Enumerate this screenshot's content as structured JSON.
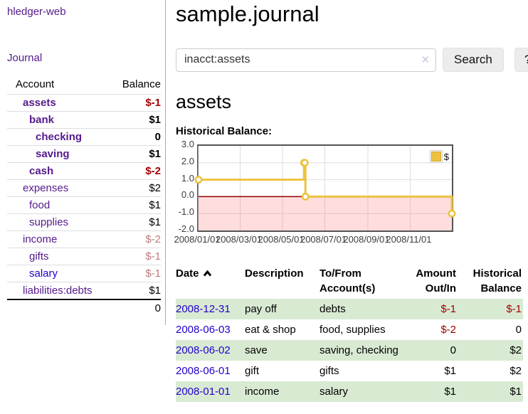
{
  "sidebar": {
    "app_title": "hledger-web",
    "journal_label": "Journal",
    "accounts_table": {
      "headers": {
        "account": "Account",
        "balance": "Balance"
      },
      "rows": [
        {
          "name": "assets",
          "balance": "$-1"
        },
        {
          "name": "bank",
          "balance": "$1"
        },
        {
          "name": "checking",
          "balance": "0"
        },
        {
          "name": "saving",
          "balance": "$1"
        },
        {
          "name": "cash",
          "balance": "$-2"
        },
        {
          "name": "expenses",
          "balance": "$2"
        },
        {
          "name": "food",
          "balance": "$1"
        },
        {
          "name": "supplies",
          "balance": "$1"
        },
        {
          "name": "income",
          "balance": "$-2"
        },
        {
          "name": "gifts",
          "balance": "$-1"
        },
        {
          "name": "salary",
          "balance": "$-1"
        },
        {
          "name": "liabilities:debts",
          "balance": "$1"
        }
      ],
      "total": "0"
    }
  },
  "main": {
    "title": "sample.journal",
    "search": {
      "value": "inacct:assets",
      "clear_icon": "✕",
      "button_label": "Search",
      "help_label": "?"
    },
    "account_heading": "assets",
    "chart_label": "Historical Balance:"
  },
  "chart_data": {
    "type": "line",
    "style": "steps",
    "title": "Historical Balance",
    "xrange": [
      "2008-01-01",
      "2008-12-31"
    ],
    "ylim": [
      -2,
      3
    ],
    "yticks": [
      "3.0",
      "2.0",
      "1.0",
      "0.0",
      "-1.0",
      "-2.0"
    ],
    "ytick_values": [
      3,
      2,
      1,
      0,
      -1,
      -2
    ],
    "ygrid": [
      2,
      1,
      -1
    ],
    "xticks": [
      "2008/01/01",
      "2008/03/01",
      "2008/05/01",
      "2008/07/01",
      "2008/09/01",
      "2008/11/01"
    ],
    "series": [
      {
        "name": "$",
        "color": "#edc240",
        "points": [
          {
            "x": "2008-01-01",
            "y": 1
          },
          {
            "x": "2008-06-01",
            "y": 2
          },
          {
            "x": "2008-06-02",
            "y": 2
          },
          {
            "x": "2008-06-03",
            "y": 0
          },
          {
            "x": "2008-12-31",
            "y": -1
          }
        ]
      }
    ],
    "legend": {
      "label": "$",
      "position": "top-right"
    },
    "colors": {
      "grid": "#dddddd",
      "border": "#545454",
      "zero_line": "#8b0000",
      "negative_region": "rgba(255,100,100,0.22)"
    }
  },
  "register": {
    "headers": {
      "date": "Date",
      "description": "Description",
      "accounts": "To/From Account(s)",
      "amount": "Amount Out/In",
      "balance": "Historical Balance"
    },
    "rows": [
      {
        "date": "2008-12-31",
        "description": "pay off",
        "accounts": "debts",
        "amount": "$-1",
        "balance": "$-1"
      },
      {
        "date": "2008-06-03",
        "description": "eat & shop",
        "accounts": "food, supplies",
        "amount": "$-2",
        "balance": "0"
      },
      {
        "date": "2008-06-02",
        "description": "save",
        "accounts": "saving, checking",
        "amount": "0",
        "balance": "$2"
      },
      {
        "date": "2008-06-01",
        "description": "gift",
        "accounts": "gifts",
        "amount": "$1",
        "balance": "$2"
      },
      {
        "date": "2008-01-01",
        "description": "income",
        "accounts": "salary",
        "amount": "$1",
        "balance": "$1"
      }
    ]
  }
}
